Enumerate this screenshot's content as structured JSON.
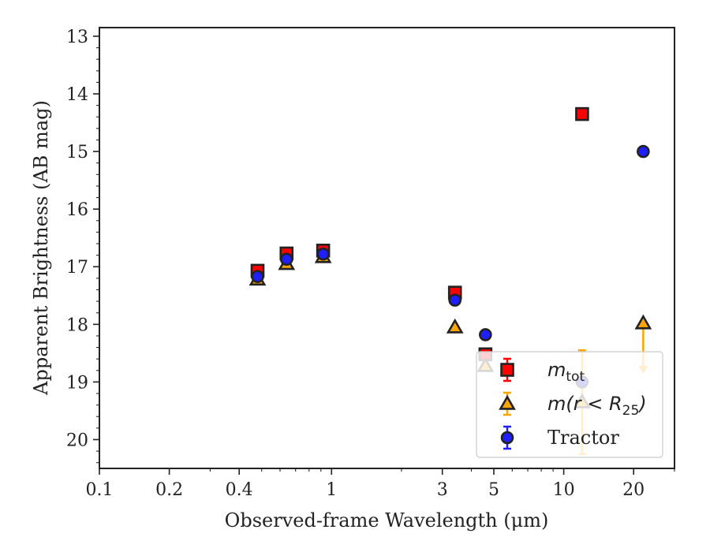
{
  "chart_data": {
    "type": "scatter",
    "xlabel": "Observed-frame Wavelength (μm)",
    "ylabel": "Apparent Brightness (AB mag)",
    "x_scale": "log",
    "xlim": [
      0.1,
      30
    ],
    "ylim": [
      20.5,
      12.85
    ],
    "y_inverted": true,
    "x_ticks": [
      0.1,
      0.2,
      0.4,
      1,
      3,
      5,
      10,
      20
    ],
    "x_tick_labels": [
      "0.1",
      "0.2",
      "0.4",
      "1",
      "3",
      "5",
      "10",
      "20"
    ],
    "y_ticks": [
      13,
      14,
      15,
      16,
      17,
      18,
      19,
      20
    ],
    "y_tick_labels": [
      "13",
      "14",
      "15",
      "16",
      "17",
      "18",
      "19",
      "20"
    ],
    "grid": false,
    "legend_position": "lower-right",
    "series": [
      {
        "name": "m_tot",
        "legend_label": "m",
        "legend_sub": "tot",
        "marker": "square",
        "color": "#ff0000",
        "edgecolor": "#222222",
        "points": [
          {
            "x": 0.48,
            "y": 17.07
          },
          {
            "x": 0.64,
            "y": 16.77
          },
          {
            "x": 0.92,
            "y": 16.72
          },
          {
            "x": 3.4,
            "y": 17.45
          },
          {
            "x": 4.6,
            "y": 18.52
          },
          {
            "x": 12.0,
            "y": 14.35
          }
        ]
      },
      {
        "name": "m(r < R25)",
        "legend_label": "m(r < R",
        "legend_sub": "25",
        "legend_tail": ")",
        "marker": "triangle",
        "color": "#ffa500",
        "edgecolor": "#222222",
        "points": [
          {
            "x": 0.48,
            "y": 17.22
          },
          {
            "x": 0.64,
            "y": 16.95
          },
          {
            "x": 0.92,
            "y": 16.83
          },
          {
            "x": 3.4,
            "y": 18.05
          },
          {
            "x": 4.6,
            "y": 18.72
          },
          {
            "x": 12.0,
            "y": 19.35,
            "yerr": 0.9
          },
          {
            "x": 22.0,
            "y": 17.98,
            "upper_limit": true
          }
        ]
      },
      {
        "name": "Tractor",
        "legend_label": "Tractor",
        "marker": "circle",
        "color": "#1f1fff",
        "edgecolor": "#222222",
        "points": [
          {
            "x": 0.48,
            "y": 17.17
          },
          {
            "x": 0.64,
            "y": 16.87
          },
          {
            "x": 0.92,
            "y": 16.78
          },
          {
            "x": 3.4,
            "y": 17.58
          },
          {
            "x": 4.6,
            "y": 18.18
          },
          {
            "x": 12.0,
            "y": 19.0
          },
          {
            "x": 22.0,
            "y": 15.0
          }
        ]
      }
    ]
  }
}
